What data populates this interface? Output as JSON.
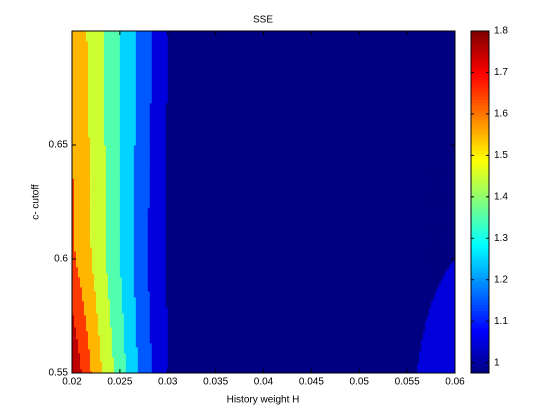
{
  "chart_data": {
    "type": "contour",
    "title": "SSE",
    "x_label": "History weight H",
    "y_label": "c- cutoff",
    "x": [
      0.02,
      0.0225,
      0.025,
      0.0275,
      0.03,
      0.035,
      0.04,
      0.045,
      0.05,
      0.055,
      0.06
    ],
    "y": [
      0.55,
      0.6,
      0.65,
      0.7
    ],
    "z": [
      [
        1.8,
        1.55,
        1.35,
        1.15,
        1.0,
        0.99,
        0.99,
        0.99,
        0.99,
        0.995,
        1.02
      ],
      [
        1.62,
        1.47,
        1.3,
        1.12,
        0.99,
        0.99,
        0.99,
        0.99,
        0.99,
        0.99,
        1.0
      ],
      [
        1.6,
        1.46,
        1.3,
        1.14,
        0.99,
        0.99,
        0.99,
        0.99,
        0.99,
        0.99,
        0.99
      ],
      [
        1.58,
        1.45,
        1.3,
        1.15,
        1.0,
        0.99,
        0.99,
        0.99,
        0.99,
        0.99,
        0.99
      ]
    ],
    "levels": [
      1.0,
      1.1,
      1.2,
      1.3,
      1.4,
      1.5,
      1.6,
      1.7
    ],
    "colormap": "jet",
    "xlim": [
      0.02,
      0.06
    ],
    "xticks": [
      0.02,
      0.025,
      0.03,
      0.035,
      0.04,
      0.045,
      0.05,
      0.055,
      0.06
    ],
    "ylim": [
      0.55,
      0.7
    ],
    "yticks": [
      0.55,
      0.6,
      0.65
    ],
    "clim": [
      0.975,
      1.8
    ],
    "cticks": [
      1,
      1.1,
      1.2,
      1.3,
      1.4,
      1.5,
      1.6,
      1.7,
      1.8
    ]
  }
}
